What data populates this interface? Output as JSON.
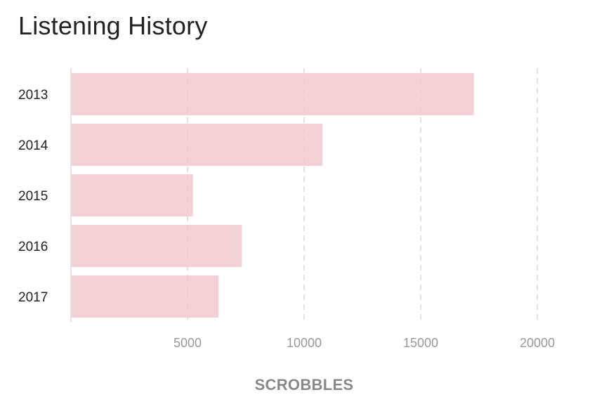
{
  "title": "Listening History",
  "chart_data": {
    "type": "bar",
    "orientation": "horizontal",
    "categories": [
      "2013",
      "2014",
      "2015",
      "2016",
      "2017"
    ],
    "values": [
      17250,
      10750,
      5200,
      7300,
      6300
    ],
    "xlabel": "SCROBBLES",
    "ylabel": "",
    "xlim": [
      0,
      20000
    ],
    "xticks": [
      5000,
      10000,
      15000,
      20000
    ],
    "tick_labels": [
      "5000",
      "10000",
      "15000",
      "20000"
    ],
    "grid": "vertical dashed",
    "bar_color": "#f2cbd0"
  }
}
